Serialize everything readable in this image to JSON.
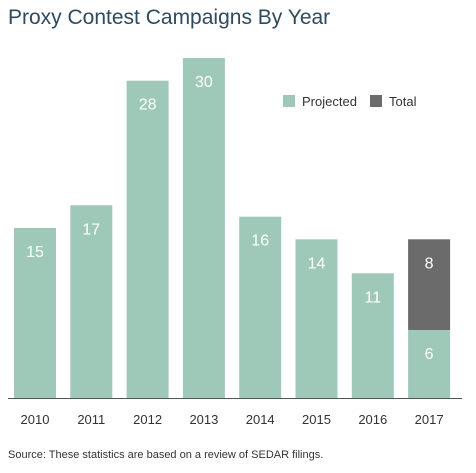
{
  "title": "Proxy Contest Campaigns By Year",
  "source": "Source: These statistics are based on a review of SEDAR filings.",
  "colors": {
    "projected": "#9ec9b9",
    "total": "#6b6b6b",
    "title": "#2e4a5e",
    "bar_label": "#ffffff",
    "axis": "#555555"
  },
  "chart_data": {
    "type": "bar",
    "stacked": true,
    "title": "Proxy Contest Campaigns By Year",
    "xlabel": "",
    "ylabel": "",
    "ylim": [
      0,
      30
    ],
    "grid": false,
    "legend_position": "top-right",
    "categories": [
      "2010",
      "2011",
      "2012",
      "2013",
      "2014",
      "2015",
      "2016",
      "2017"
    ],
    "series": [
      {
        "name": "Projected",
        "values": [
          15,
          17,
          28,
          30,
          16,
          14,
          11,
          6
        ]
      },
      {
        "name": "Total",
        "values": [
          0,
          0,
          0,
          0,
          0,
          0,
          0,
          8
        ]
      }
    ]
  }
}
